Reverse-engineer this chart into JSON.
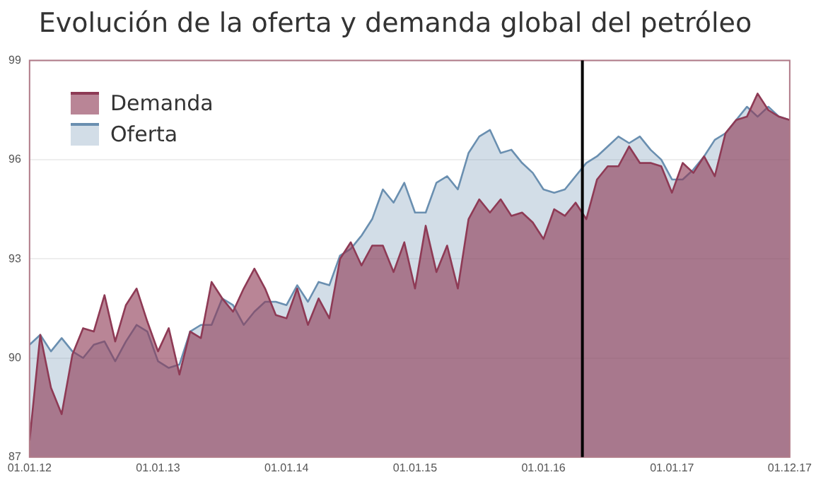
{
  "chart_data": {
    "type": "area",
    "title": "Evolución de la oferta y demanda global del petróleo",
    "x": [
      "2012-01",
      "2012-02",
      "2012-03",
      "2012-04",
      "2012-05",
      "2012-06",
      "2012-07",
      "2012-08",
      "2012-09",
      "2012-10",
      "2012-11",
      "2012-12",
      "2013-01",
      "2013-02",
      "2013-03",
      "2013-04",
      "2013-05",
      "2013-06",
      "2013-07",
      "2013-08",
      "2013-09",
      "2013-10",
      "2013-11",
      "2013-12",
      "2014-01",
      "2014-02",
      "2014-03",
      "2014-04",
      "2014-05",
      "2014-06",
      "2014-07",
      "2014-08",
      "2014-09",
      "2014-10",
      "2014-11",
      "2014-12",
      "2015-01",
      "2015-02",
      "2015-03",
      "2015-04",
      "2015-05",
      "2015-06",
      "2015-07",
      "2015-08",
      "2015-09",
      "2015-10",
      "2015-11",
      "2015-12",
      "2016-01",
      "2016-02",
      "2016-03",
      "2016-04",
      "2016-05",
      "2016-06",
      "2016-07",
      "2016-08",
      "2016-09",
      "2016-10",
      "2016-11",
      "2016-12",
      "2017-01",
      "2017-02",
      "2017-03",
      "2017-04",
      "2017-05",
      "2017-06",
      "2017-07",
      "2017-08",
      "2017-09",
      "2017-10",
      "2017-11",
      "2017-12"
    ],
    "series": [
      {
        "name": "Demanda",
        "color": "#8e3a55",
        "values": [
          87.5,
          90.7,
          89.1,
          88.3,
          90.1,
          90.9,
          90.8,
          91.9,
          90.5,
          91.6,
          92.1,
          91.1,
          90.2,
          90.9,
          89.5,
          90.8,
          90.6,
          92.3,
          91.8,
          91.4,
          92.1,
          92.7,
          92.1,
          91.3,
          91.2,
          92.1,
          91.0,
          91.8,
          91.2,
          93.0,
          93.5,
          92.8,
          93.4,
          93.4,
          92.6,
          93.5,
          92.1,
          94.0,
          92.6,
          93.4,
          92.1,
          94.2,
          94.8,
          94.4,
          94.8,
          94.3,
          94.4,
          94.1,
          93.6,
          94.5,
          94.3,
          94.7,
          94.2,
          95.4,
          95.8,
          95.8,
          96.4,
          95.9,
          95.9,
          95.8,
          95.0,
          95.9,
          95.6,
          96.1,
          95.5,
          96.8,
          97.2,
          97.3,
          98.0,
          97.5,
          97.3,
          97.2
        ]
      },
      {
        "name": "Oferta",
        "color": "#6a8fb0",
        "values": [
          90.4,
          90.7,
          90.2,
          90.6,
          90.2,
          90.0,
          90.4,
          90.5,
          89.9,
          90.5,
          91.0,
          90.8,
          89.9,
          89.7,
          89.8,
          90.8,
          91.0,
          91.0,
          91.8,
          91.6,
          91.0,
          91.4,
          91.7,
          91.7,
          91.6,
          92.2,
          91.7,
          92.3,
          92.2,
          93.1,
          93.3,
          93.7,
          94.2,
          95.1,
          94.7,
          95.3,
          94.4,
          94.4,
          95.3,
          95.5,
          95.1,
          96.2,
          96.7,
          96.9,
          96.2,
          96.3,
          95.9,
          95.6,
          95.1,
          95.0,
          95.1,
          95.5,
          95.9,
          96.1,
          96.4,
          96.7,
          96.5,
          96.7,
          96.3,
          96.0,
          95.4,
          95.4,
          95.7,
          96.1,
          96.6,
          96.8,
          97.2,
          97.6,
          97.3,
          97.6,
          97.3,
          97.2
        ]
      }
    ],
    "xlim": [
      "2012-01",
      "2017-12"
    ],
    "xticks": [
      {
        "value": "2012-01",
        "label": "01.01.12"
      },
      {
        "value": "2013-01",
        "label": "01.01.13"
      },
      {
        "value": "2014-01",
        "label": "01.01.14"
      },
      {
        "value": "2015-01",
        "label": "01.01.15"
      },
      {
        "value": "2016-01",
        "label": "01.01.16"
      },
      {
        "value": "2017-01",
        "label": "01.01.17"
      },
      {
        "value": "2017-12",
        "label": "01.12.17"
      }
    ],
    "ylim": [
      87,
      99
    ],
    "yticks": [
      87,
      90,
      93,
      96,
      99
    ],
    "ref_lines": [
      {
        "axis": "x",
        "value": "2016-04-20",
        "color": "#000000"
      }
    ],
    "grid": "y",
    "legend": "top left",
    "marker": "none",
    "line_style": "solid"
  }
}
